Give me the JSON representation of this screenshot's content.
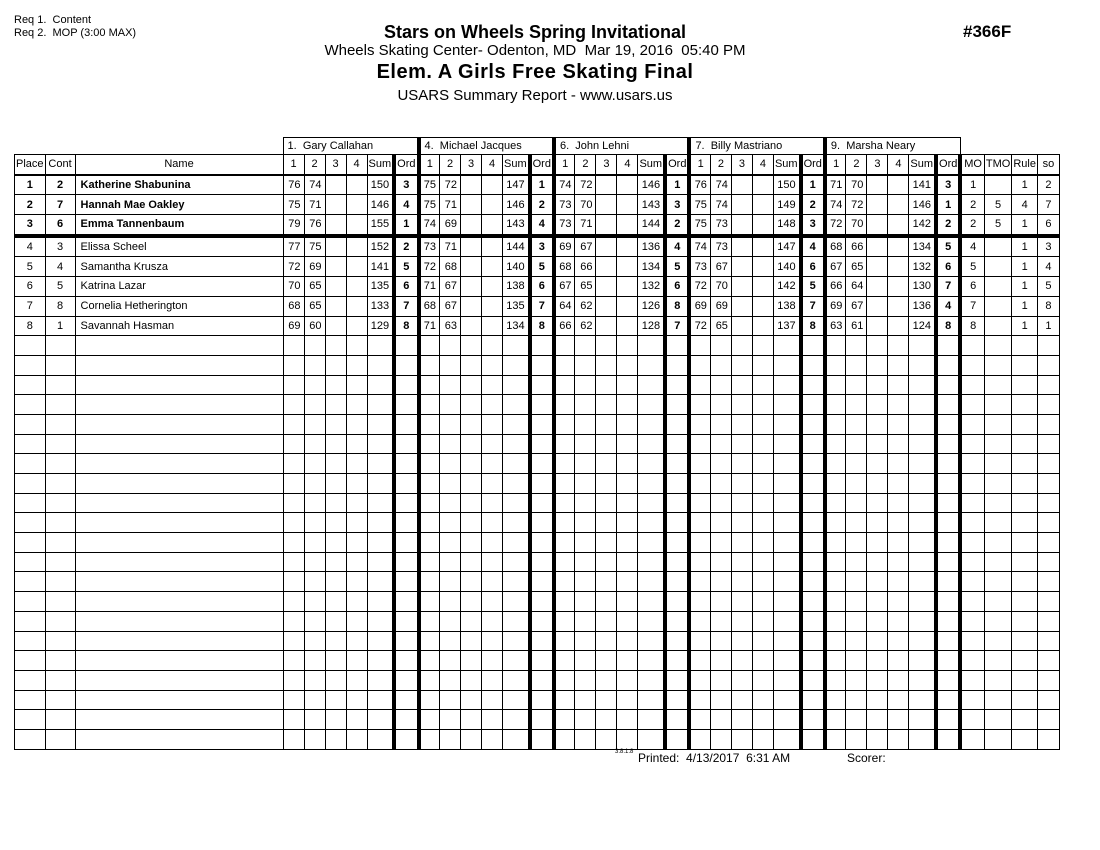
{
  "header": {
    "req1": "Req 1.  Content",
    "req2": "Req 2.  MOP (3:00 MAX)",
    "title": "Stars on Wheels Spring Invitational",
    "doc_number": "#366F",
    "venue_line": "Wheels Skating Center- Odenton, MD  Mar 19, 2016  05:40 PM",
    "event_title": "Elem. A Girls Free Skating Final",
    "report_line": "USARS Summary Report - www.usars.us"
  },
  "table": {
    "left_headers": [
      "Place",
      "Cont",
      "Name"
    ],
    "judge_subheaders": [
      "1",
      "2",
      "3",
      "4",
      "Sum",
      "Ord"
    ],
    "right_headers": [
      "MO",
      "TMO",
      "Rule",
      "so"
    ],
    "judges": [
      "1.  Gary Callahan",
      "4.  Michael Jacques",
      "6.  John Lehni",
      "7.  Billy Mastriano",
      "9.  Marsha Neary"
    ],
    "empty_row_count": 21,
    "rows": [
      {
        "place": "1",
        "cont": "2",
        "name": "Katherine Shabunina",
        "bold": true,
        "judges": [
          [
            "76",
            "74",
            "",
            "",
            "150",
            "3"
          ],
          [
            "75",
            "72",
            "",
            "",
            "147",
            "1"
          ],
          [
            "74",
            "72",
            "",
            "",
            "146",
            "1"
          ],
          [
            "76",
            "74",
            "",
            "",
            "150",
            "1"
          ],
          [
            "71",
            "70",
            "",
            "",
            "141",
            "3"
          ]
        ],
        "mo": "1",
        "tmo": "",
        "rule": "1",
        "so": "2"
      },
      {
        "place": "2",
        "cont": "7",
        "name": "Hannah Mae Oakley",
        "bold": true,
        "judges": [
          [
            "75",
            "71",
            "",
            "",
            "146",
            "4"
          ],
          [
            "75",
            "71",
            "",
            "",
            "146",
            "2"
          ],
          [
            "73",
            "70",
            "",
            "",
            "143",
            "3"
          ],
          [
            "75",
            "74",
            "",
            "",
            "149",
            "2"
          ],
          [
            "74",
            "72",
            "",
            "",
            "146",
            "1"
          ]
        ],
        "mo": "2",
        "tmo": "5",
        "rule": "4",
        "so": "7"
      },
      {
        "place": "3",
        "cont": "6",
        "name": "Emma Tannenbaum",
        "bold": true,
        "judges": [
          [
            "79",
            "76",
            "",
            "",
            "155",
            "1"
          ],
          [
            "74",
            "69",
            "",
            "",
            "143",
            "4"
          ],
          [
            "73",
            "71",
            "",
            "",
            "144",
            "2"
          ],
          [
            "75",
            "73",
            "",
            "",
            "148",
            "3"
          ],
          [
            "72",
            "70",
            "",
            "",
            "142",
            "2"
          ]
        ],
        "mo": "2",
        "tmo": "5",
        "rule": "1",
        "so": "6"
      },
      {
        "place": "4",
        "cont": "3",
        "name": "Elissa Scheel",
        "bold": false,
        "judges": [
          [
            "77",
            "75",
            "",
            "",
            "152",
            "2"
          ],
          [
            "73",
            "71",
            "",
            "",
            "144",
            "3"
          ],
          [
            "69",
            "67",
            "",
            "",
            "136",
            "4"
          ],
          [
            "74",
            "73",
            "",
            "",
            "147",
            "4"
          ],
          [
            "68",
            "66",
            "",
            "",
            "134",
            "5"
          ]
        ],
        "mo": "4",
        "tmo": "",
        "rule": "1",
        "so": "3"
      },
      {
        "place": "5",
        "cont": "4",
        "name": "Samantha Krusza",
        "bold": false,
        "judges": [
          [
            "72",
            "69",
            "",
            "",
            "141",
            "5"
          ],
          [
            "72",
            "68",
            "",
            "",
            "140",
            "5"
          ],
          [
            "68",
            "66",
            "",
            "",
            "134",
            "5"
          ],
          [
            "73",
            "67",
            "",
            "",
            "140",
            "6"
          ],
          [
            "67",
            "65",
            "",
            "",
            "132",
            "6"
          ]
        ],
        "mo": "5",
        "tmo": "",
        "rule": "1",
        "so": "4"
      },
      {
        "place": "6",
        "cont": "5",
        "name": "Katrina Lazar",
        "bold": false,
        "judges": [
          [
            "70",
            "65",
            "",
            "",
            "135",
            "6"
          ],
          [
            "71",
            "67",
            "",
            "",
            "138",
            "6"
          ],
          [
            "67",
            "65",
            "",
            "",
            "132",
            "6"
          ],
          [
            "72",
            "70",
            "",
            "",
            "142",
            "5"
          ],
          [
            "66",
            "64",
            "",
            "",
            "130",
            "7"
          ]
        ],
        "mo": "6",
        "tmo": "",
        "rule": "1",
        "so": "5"
      },
      {
        "place": "7",
        "cont": "8",
        "name": "Cornelia Hetherington",
        "bold": false,
        "judges": [
          [
            "68",
            "65",
            "",
            "",
            "133",
            "7"
          ],
          [
            "68",
            "67",
            "",
            "",
            "135",
            "7"
          ],
          [
            "64",
            "62",
            "",
            "",
            "126",
            "8"
          ],
          [
            "69",
            "69",
            "",
            "",
            "138",
            "7"
          ],
          [
            "69",
            "67",
            "",
            "",
            "136",
            "4"
          ]
        ],
        "mo": "7",
        "tmo": "",
        "rule": "1",
        "so": "8"
      },
      {
        "place": "8",
        "cont": "1",
        "name": "Savannah Hasman",
        "bold": false,
        "judges": [
          [
            "69",
            "60",
            "",
            "",
            "129",
            "8"
          ],
          [
            "71",
            "63",
            "",
            "",
            "134",
            "8"
          ],
          [
            "66",
            "62",
            "",
            "",
            "128",
            "7"
          ],
          [
            "72",
            "65",
            "",
            "",
            "137",
            "8"
          ],
          [
            "63",
            "61",
            "",
            "",
            "124",
            "8"
          ]
        ],
        "mo": "8",
        "tmo": "",
        "rule": "1",
        "so": "1"
      }
    ]
  },
  "footer": {
    "version": "3.8.1.8",
    "printed": "Printed:  4/13/2017  6:31 AM",
    "scorer": "Scorer:"
  }
}
